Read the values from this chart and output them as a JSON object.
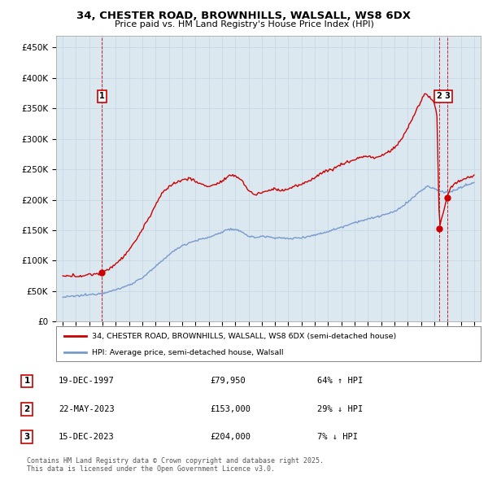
{
  "title1": "34, CHESTER ROAD, BROWNHILLS, WALSALL, WS8 6DX",
  "title2": "Price paid vs. HM Land Registry's House Price Index (HPI)",
  "ytick_labels": [
    "£0",
    "£50K",
    "£100K",
    "£150K",
    "£200K",
    "£250K",
    "£300K",
    "£350K",
    "£400K",
    "£450K"
  ],
  "yticks": [
    0,
    50000,
    100000,
    150000,
    200000,
    250000,
    300000,
    350000,
    400000,
    450000
  ],
  "xmin": 1994.5,
  "xmax": 2026.5,
  "ymin": 0,
  "ymax": 468750,
  "grid_color": "#c8d8e8",
  "plot_bg_color": "#dce8f0",
  "red_line_color": "#cc0000",
  "blue_line_color": "#7799cc",
  "legend1_label": "34, CHESTER ROAD, BROWNHILLS, WALSALL, WS8 6DX (semi-detached house)",
  "legend2_label": "HPI: Average price, semi-detached house, Walsall",
  "transactions": [
    {
      "num": 1,
      "date": "19-DEC-1997",
      "price": 79950,
      "pct": "64%",
      "dir": "↑",
      "year": 1997.96
    },
    {
      "num": 2,
      "date": "22-MAY-2023",
      "price": 153000,
      "pct": "29%",
      "dir": "↓",
      "year": 2023.39
    },
    {
      "num": 3,
      "date": "15-DEC-2023",
      "price": 204000,
      "pct": "7%",
      "dir": "↓",
      "year": 2023.96
    }
  ],
  "footnote1": "Contains HM Land Registry data © Crown copyright and database right 2025.",
  "footnote2": "This data is licensed under the Open Government Licence v3.0.",
  "bg_color": "#ffffff"
}
